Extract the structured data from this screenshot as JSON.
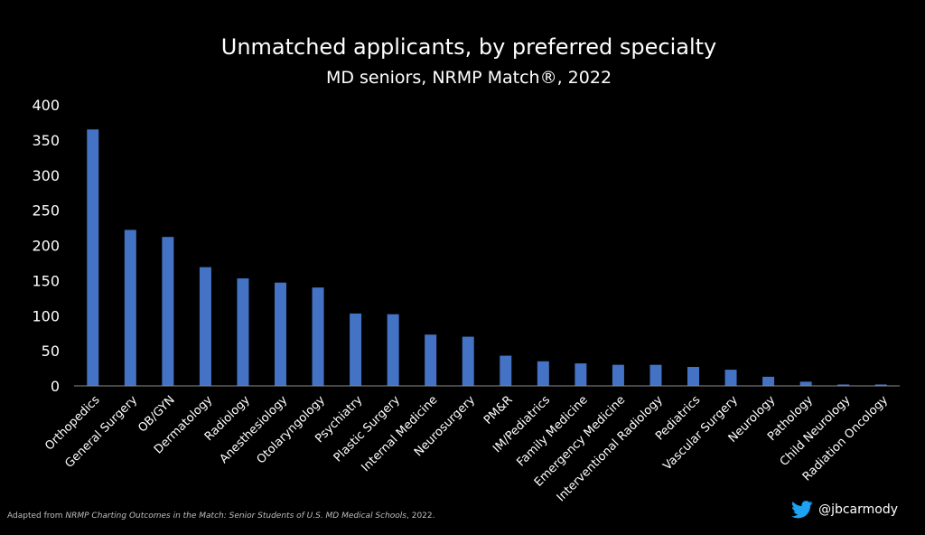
{
  "chart_data": {
    "type": "bar",
    "title": "Unmatched applicants, by preferred specialty",
    "subtitle": "MD seniors, NRMP Match®, 2022",
    "xlabel": "",
    "ylabel": "",
    "ylim": [
      0,
      400
    ],
    "yticks": [
      0,
      50,
      100,
      150,
      200,
      250,
      300,
      350,
      400
    ],
    "grid": false,
    "bar_color": "#4472C4",
    "categories": [
      "Orthopedics",
      "General Surgery",
      "OB/GYN",
      "Dermatology",
      "Radiology",
      "Anesthesiology",
      "Otolaryngology",
      "Psychiatry",
      "Plastic Surgery",
      "Internal Medicine",
      "Neurosurgery",
      "PM&R",
      "IM/Pediatrics",
      "Family Medicine",
      "Emergency Medicine",
      "Interventional Radiology",
      "Pediatrics",
      "Vascular Surgery",
      "Neurology",
      "Pathology",
      "Child Neurology",
      "Radiation Oncology"
    ],
    "values": [
      365,
      222,
      212,
      169,
      153,
      147,
      140,
      103,
      102,
      73,
      70,
      43,
      35,
      32,
      30,
      30,
      27,
      23,
      13,
      6,
      2,
      2
    ]
  },
  "footer": {
    "prefix": "Adapted from ",
    "source": "NRMP Charting Outcomes in the Match: Senior Students of U.S. MD Medical Schools",
    "suffix": ", 2022."
  },
  "social": {
    "icon": "twitter-bird-icon",
    "handle": "@jbcarmody"
  }
}
